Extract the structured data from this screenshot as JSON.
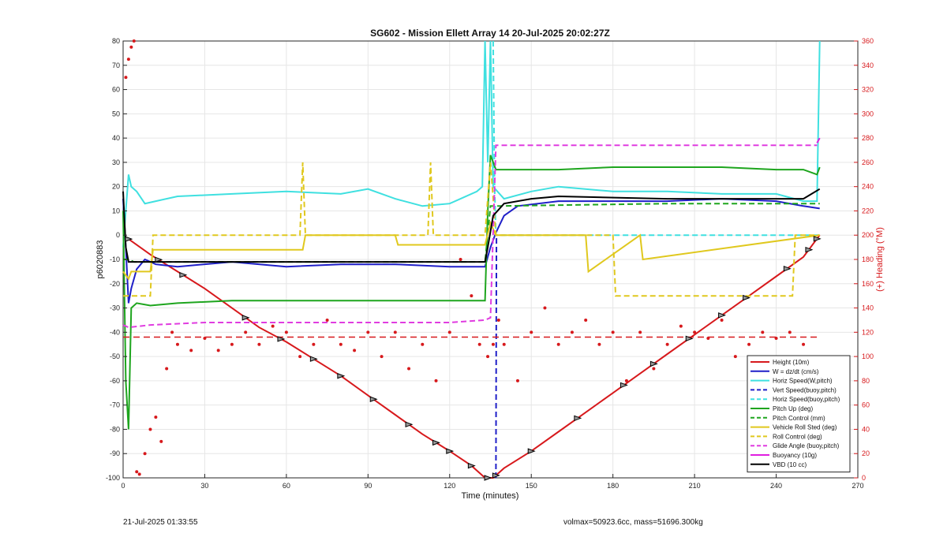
{
  "chart_data": {
    "type": "line",
    "title": "SG602 - Mission Ellett Array 14 20-Jul-2025 20:02:27Z",
    "xlabel": "Time (minutes)",
    "ylabel_left": "p6020883",
    "ylabel_right": "(+) Heading (°M)",
    "xlim": [
      0,
      270
    ],
    "ylim_left": [
      -100,
      80
    ],
    "ylim_right": [
      0,
      360
    ],
    "xticks": [
      0,
      30,
      60,
      90,
      120,
      150,
      180,
      210,
      240,
      270
    ],
    "yticks_left": [
      -100,
      -90,
      -80,
      -70,
      -60,
      -50,
      -40,
      -30,
      -20,
      -10,
      0,
      10,
      20,
      30,
      40,
      50,
      60,
      70,
      80
    ],
    "yticks_right": [
      0,
      20,
      40,
      60,
      80,
      100,
      120,
      140,
      160,
      180,
      200,
      220,
      240,
      260,
      280,
      300,
      320,
      340,
      360
    ],
    "grid": true,
    "legend_position": "bottom-right",
    "colors": {
      "height": "#d7191c",
      "w": "#1f1fc8",
      "horiz_speed": "#3fe0e0",
      "pitch": "#1ea51e",
      "roll": "#e0c81e",
      "glide": "#e03ce0",
      "buoyancy": "#e01ee0",
      "vbd": "#000000",
      "heading": "#d7191c"
    },
    "series": [
      {
        "name": "Height (10m)",
        "color": "#d7191c",
        "style": "solid",
        "axis": "left",
        "x": [
          0,
          10,
          20,
          30,
          40,
          50,
          60,
          70,
          80,
          90,
          100,
          110,
          120,
          128,
          133,
          136,
          140,
          150,
          160,
          170,
          180,
          190,
          200,
          210,
          220,
          230,
          240,
          250,
          256
        ],
        "y": [
          0,
          -8,
          -15,
          -22,
          -30,
          -38,
          -44,
          -51,
          -58,
          -66,
          -74,
          -82,
          -89,
          -95,
          -100,
          -100,
          -96,
          -89,
          -81,
          -73,
          -65,
          -57,
          -49,
          -41,
          -33,
          -25,
          -17,
          -9,
          0
        ]
      },
      {
        "name": "W = dz/dt (cm/s)",
        "color": "#1f1fc8",
        "style": "solid",
        "axis": "left",
        "x": [
          0,
          1,
          2,
          3,
          5,
          8,
          12,
          20,
          40,
          60,
          80,
          100,
          120,
          130,
          133,
          135,
          137,
          140,
          145,
          160,
          180,
          200,
          220,
          240,
          250,
          256
        ],
        "y": [
          15,
          -5,
          -28,
          -22,
          -14,
          -10,
          -12,
          -13,
          -11,
          -13,
          -12,
          -12,
          -13,
          -13,
          -13,
          -5,
          1,
          8,
          12,
          14,
          14,
          14,
          15,
          14,
          12,
          11
        ]
      },
      {
        "name": "Horiz Speed(W,pitch)",
        "color": "#3fe0e0",
        "style": "solid",
        "axis": "left",
        "x": [
          0,
          1,
          2,
          3,
          5,
          8,
          12,
          20,
          40,
          60,
          80,
          90,
          100,
          110,
          120,
          130,
          132,
          133,
          134,
          135,
          136,
          140,
          150,
          160,
          180,
          200,
          220,
          240,
          250,
          255,
          256
        ],
        "y": [
          -5,
          10,
          25,
          20,
          18,
          13,
          14,
          16,
          17,
          18,
          17,
          19,
          15,
          12,
          13,
          18,
          20,
          80,
          30,
          80,
          20,
          15,
          18,
          20,
          18,
          18,
          17,
          17,
          14,
          14,
          80
        ]
      },
      {
        "name": "Vert Speed(buoy,pitch)",
        "color": "#1f1fc8",
        "style": "dashed",
        "axis": "left",
        "x": [
          137,
          137.2
        ],
        "y": [
          -100,
          0
        ]
      },
      {
        "name": "Horiz Speed(buoy,pitch)",
        "color": "#3fe0e0",
        "style": "dashed",
        "axis": "left",
        "x": [
          136,
          136.5,
          137,
          140,
          256
        ],
        "y": [
          80,
          20,
          0,
          0,
          0
        ]
      },
      {
        "name": "Pitch Up (deg)",
        "color": "#1ea51e",
        "style": "solid",
        "axis": "left",
        "x": [
          0,
          1,
          2,
          3,
          5,
          10,
          20,
          40,
          60,
          80,
          100,
          120,
          133,
          134,
          135,
          137,
          140,
          160,
          180,
          200,
          220,
          240,
          250,
          255,
          256
        ],
        "y": [
          10,
          -60,
          -80,
          -30,
          -28,
          -29,
          -28,
          -27,
          -27,
          -27,
          -27,
          -27,
          -27,
          10,
          33,
          27,
          27,
          27,
          28,
          28,
          28,
          27,
          27,
          25,
          28
        ]
      },
      {
        "name": "Pitch Control (mm)",
        "color": "#1ea51e",
        "style": "dashed",
        "axis": "left",
        "x": [
          0,
          2,
          4,
          133,
          135,
          137,
          200,
          256
        ],
        "y": [
          -10,
          -10,
          -11,
          -11,
          12,
          12,
          13,
          13
        ]
      },
      {
        "name": "Vehicle Roll Sted (deg)",
        "color": "#e0c81e",
        "style": "solid",
        "axis": "left",
        "x": [
          0,
          2,
          3,
          10,
          11,
          20,
          66,
          67,
          100,
          101,
          133,
          135,
          137,
          140,
          170,
          171,
          190,
          191,
          256
        ],
        "y": [
          -15,
          -18,
          -15,
          -15,
          -6,
          -6,
          -6,
          0,
          0,
          -4,
          -4,
          5,
          0,
          0,
          0,
          -15,
          0,
          -10,
          0
        ]
      },
      {
        "name": "Roll Control (deg)",
        "color": "#e0c81e",
        "style": "dashed",
        "axis": "left",
        "x": [
          0,
          10,
          11,
          65,
          66,
          67,
          112,
          113,
          114,
          133,
          135,
          137,
          180,
          181,
          246,
          247,
          256
        ],
        "y": [
          -25,
          -25,
          0,
          0,
          30,
          0,
          0,
          30,
          0,
          0,
          30,
          0,
          0,
          -25,
          -25,
          0,
          0
        ]
      },
      {
        "name": "Glide Angle (buoy,pitch)",
        "color": "#e03ce0",
        "style": "dashed",
        "axis": "left",
        "x": [
          0,
          2,
          10,
          30,
          60,
          90,
          120,
          133,
          135,
          137,
          140,
          160,
          180,
          200,
          220,
          240,
          255
        ],
        "y": [
          -37,
          -38,
          -37,
          -36,
          -36,
          -36,
          -36,
          -35,
          -34,
          37,
          37,
          37,
          37,
          37,
          37,
          37,
          37
        ]
      },
      {
        "name": "Buoyancy (10g)",
        "color": "#e01ee0",
        "style": "solid",
        "axis": "left",
        "x": [
          255,
          256
        ],
        "y": [
          38,
          40
        ]
      },
      {
        "name": "VBD (10 cc)",
        "color": "#000000",
        "style": "solid",
        "axis": "left",
        "x": [
          0,
          1,
          2,
          10,
          50,
          100,
          133,
          134,
          136,
          140,
          150,
          160,
          200,
          250,
          253,
          256
        ],
        "y": [
          18,
          -5,
          -11,
          -11,
          -11,
          -11,
          -11,
          -5,
          8,
          13,
          15,
          16,
          15,
          15,
          17,
          19
        ]
      }
    ],
    "heading": {
      "name": "Heading",
      "color": "#d7191c",
      "axis": "right",
      "x": [
        1,
        2,
        3,
        4,
        5,
        6,
        8,
        10,
        12,
        14,
        16,
        18,
        20,
        25,
        30,
        35,
        40,
        45,
        50,
        55,
        60,
        65,
        70,
        75,
        80,
        85,
        90,
        95,
        100,
        105,
        110,
        115,
        120,
        124,
        128,
        131,
        134,
        136,
        138,
        140,
        145,
        150,
        155,
        160,
        165,
        170,
        175,
        180,
        185,
        190,
        195,
        200,
        205,
        210,
        215,
        220,
        225,
        230,
        235,
        240,
        245,
        250
      ],
      "y": [
        330,
        345,
        355,
        360,
        5,
        3,
        20,
        40,
        50,
        30,
        90,
        120,
        110,
        105,
        115,
        105,
        110,
        120,
        110,
        125,
        120,
        100,
        110,
        130,
        110,
        105,
        120,
        100,
        120,
        90,
        110,
        80,
        120,
        180,
        150,
        110,
        100,
        110,
        130,
        110,
        80,
        120,
        140,
        110,
        120,
        130,
        110,
        120,
        80,
        120,
        90,
        110,
        125,
        120,
        115,
        130,
        100,
        110,
        120,
        115,
        120,
        110
      ]
    },
    "heading_ref": {
      "value": 116,
      "style": "dashed",
      "color": "#d7191c"
    },
    "markers": {
      "x": [
        2,
        13,
        22,
        45,
        58,
        70,
        80,
        92,
        105,
        115,
        120,
        128,
        134,
        137,
        150,
        167,
        184,
        195,
        208,
        220,
        229,
        244,
        252,
        255
      ],
      "style": "black triangles on Height curve"
    }
  },
  "footer": {
    "timestamp": "21-Jul-2025 01:33:55",
    "volmax": "volmax=50923.6cc, mass=51696.300kg"
  }
}
